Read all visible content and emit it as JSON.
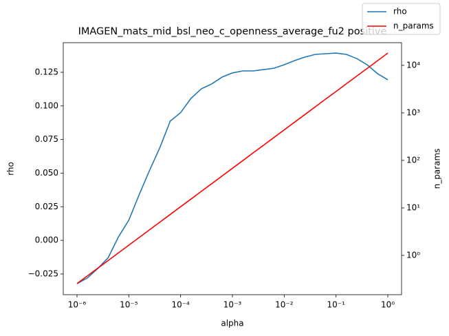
{
  "chart_data": {
    "type": "line",
    "title": "IMAGEN_mats_mid_bsl_neo_c_openness_average_fu2 positive",
    "xlabel": "alpha",
    "ylabel": "rho",
    "y2label": "n_params",
    "xscale": "log",
    "y2scale": "log",
    "legend": "upper right",
    "x": [
      1e-06,
      1.585e-06,
      2.512e-06,
      3.981e-06,
      6.31e-06,
      1e-05,
      1.585e-05,
      2.512e-05,
      3.981e-05,
      6.31e-05,
      0.0001,
      0.0001585,
      0.0002512,
      0.0003981,
      0.000631,
      0.001,
      0.001585,
      0.002512,
      0.003981,
      0.00631,
      0.01,
      0.01585,
      0.02512,
      0.03981,
      0.0631,
      0.1,
      0.1585,
      0.2512,
      0.3981,
      0.631,
      1
    ],
    "series": [
      {
        "name": "rho",
        "color": "#1f77b4",
        "axis": "y",
        "values": [
          -0.0322,
          -0.028,
          -0.021,
          -0.013,
          0.0026,
          0.015,
          0.034,
          0.052,
          0.069,
          0.0887,
          0.095,
          0.1056,
          0.1127,
          0.1163,
          0.1214,
          0.1245,
          0.126,
          0.126,
          0.127,
          0.128,
          0.1306,
          0.1337,
          0.1363,
          0.1383,
          0.1388,
          0.1393,
          0.1383,
          0.1352,
          0.1306,
          0.124,
          0.1194
        ]
      },
      {
        "name": "n_params",
        "color": "#ff0000",
        "axis": "y2",
        "values": [
          0.255,
          0.37,
          0.537,
          0.778,
          1.13,
          1.64,
          2.38,
          3.46,
          5.01,
          7.28,
          10.6,
          15.3,
          22.3,
          32.3,
          46.9,
          68.1,
          98.8,
          144,
          208,
          302,
          439,
          637,
          924,
          1340,
          1950,
          2820,
          4100,
          5950,
          8630,
          12500,
          18200
        ]
      }
    ],
    "xlim": [
      5.43e-07,
      1.84
    ],
    "xticks": [
      {
        "value": 1e-06,
        "label": "10⁻⁶"
      },
      {
        "value": 1e-05,
        "label": "10⁻⁵"
      },
      {
        "value": 0.0001,
        "label": "10⁻⁴"
      },
      {
        "value": 0.001,
        "label": "10⁻³"
      },
      {
        "value": 0.01,
        "label": "10⁻²"
      },
      {
        "value": 0.1,
        "label": "10⁻¹"
      },
      {
        "value": 1,
        "label": "10⁰"
      }
    ],
    "ylim": [
      -0.0404,
      0.147
    ],
    "yticks": [
      {
        "value": -0.025,
        "label": "−0.025"
      },
      {
        "value": 0,
        "label": "0.000"
      },
      0.025,
      {
        "value": 0.05,
        "label": "0.050"
      },
      0.075,
      {
        "value": 0.1,
        "label": "0.100"
      },
      0.125
    ],
    "y2lim": [
      0.149,
      30000
    ],
    "y2ticks": [
      {
        "value": 1,
        "label": "10⁰"
      },
      {
        "value": 10,
        "label": "10¹"
      },
      {
        "value": 100,
        "label": "10²"
      },
      {
        "value": 1000,
        "label": "10³"
      },
      {
        "value": 10000,
        "label": "10⁴"
      }
    ]
  }
}
